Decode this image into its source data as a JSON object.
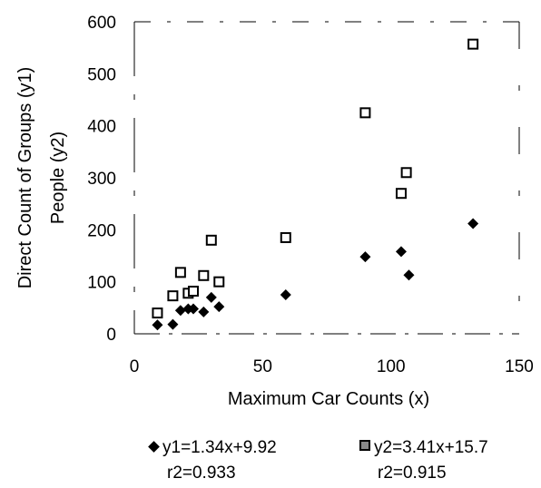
{
  "chart_data": {
    "type": "scatter",
    "xlabel": "Maximum Car Counts (x)",
    "ylabel": [
      "Direct Count of Groups (y1)",
      "People (y2)"
    ],
    "xlim": [
      0,
      150
    ],
    "ylim": [
      0,
      600
    ],
    "xticks": [
      "0",
      "50",
      "100",
      "150"
    ],
    "yticks": [
      "0",
      "100",
      "200",
      "300",
      "400",
      "500",
      "600"
    ],
    "series": [
      {
        "marker": "filled-diamond",
        "color": "#000000",
        "legend": [
          "y1=1.34x+9.92",
          "r2=0.933"
        ],
        "points": [
          [
            9,
            17
          ],
          [
            15,
            18
          ],
          [
            18,
            45
          ],
          [
            21,
            48
          ],
          [
            23,
            48
          ],
          [
            27,
            42
          ],
          [
            30,
            70
          ],
          [
            33,
            52
          ],
          [
            59,
            75
          ],
          [
            90,
            148
          ],
          [
            104,
            158
          ],
          [
            107,
            113
          ],
          [
            132,
            212
          ]
        ]
      },
      {
        "marker": "open-square",
        "color": "#000000",
        "legend": [
          "y2=3.41x+15.7",
          "r2=0.915"
        ],
        "points": [
          [
            9,
            40
          ],
          [
            15,
            73
          ],
          [
            18,
            118
          ],
          [
            21,
            78
          ],
          [
            23,
            82
          ],
          [
            27,
            112
          ],
          [
            30,
            180
          ],
          [
            33,
            100
          ],
          [
            59,
            185
          ],
          [
            90,
            425
          ],
          [
            104,
            270
          ],
          [
            106,
            310
          ],
          [
            132,
            557
          ]
        ]
      }
    ],
    "grid": false,
    "legend_position": "bottom"
  }
}
